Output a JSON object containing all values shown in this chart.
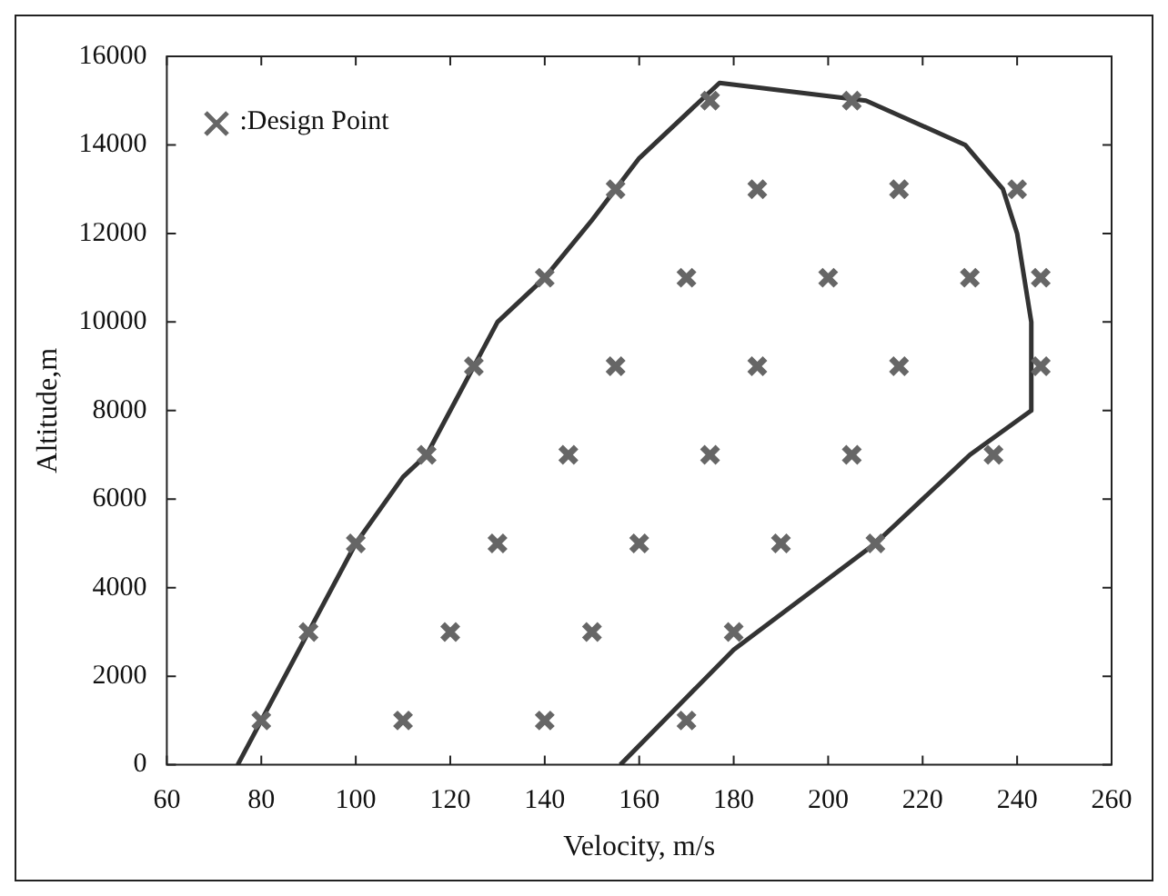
{
  "chart_data": {
    "type": "scatter",
    "xlabel": "Velocity, m/s",
    "ylabel": "Altitude,m",
    "xlim": [
      60,
      260
    ],
    "xticks": [
      60,
      80,
      100,
      120,
      140,
      160,
      180,
      200,
      220,
      240,
      260
    ],
    "ylim": [
      0,
      16000
    ],
    "yticks": [
      0,
      2000,
      4000,
      6000,
      8000,
      10000,
      12000,
      14000,
      16000
    ],
    "grid": false,
    "legend": "top left",
    "marker": "cross",
    "series": [
      {
        "name": ":Design Point",
        "color": "#666666",
        "x": [
          80,
          110,
          140,
          170,
          90,
          120,
          150,
          180,
          100,
          130,
          160,
          190,
          210,
          115,
          145,
          175,
          205,
          235,
          125,
          155,
          185,
          215,
          245,
          140,
          170,
          200,
          230,
          245,
          155,
          185,
          215,
          240,
          175,
          205
        ],
        "values": [
          1000,
          1000,
          1000,
          1000,
          3000,
          3000,
          3000,
          3000,
          5000,
          5000,
          5000,
          5000,
          5000,
          7000,
          7000,
          7000,
          7000,
          7000,
          9000,
          9000,
          9000,
          9000,
          9000,
          11000,
          11000,
          11000,
          11000,
          11000,
          13000,
          13000,
          13000,
          13000,
          15000,
          15000
        ]
      },
      {
        "type": "line",
        "color": "#333333",
        "line_style": "solid",
        "marker": "none",
        "x": [
          75,
          80,
          90,
          100,
          110,
          115,
          125,
          130,
          140,
          150,
          160,
          177,
          208,
          229,
          237,
          240,
          243,
          243,
          230,
          210,
          180,
          156
        ],
        "values": [
          0,
          1000,
          3000,
          5000,
          6500,
          7000,
          9000,
          10000,
          11000,
          12300,
          13700,
          15400,
          15000,
          14000,
          13000,
          12000,
          10000,
          8000,
          7000,
          5000,
          2600,
          0
        ]
      }
    ]
  }
}
